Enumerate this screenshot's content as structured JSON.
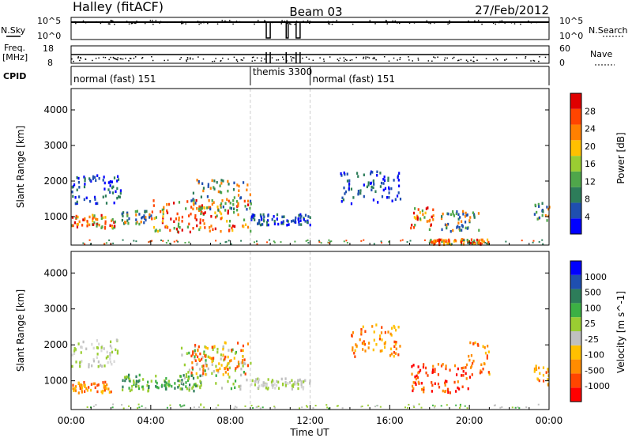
{
  "header": {
    "station": "Halley (fitACF)",
    "beam": "Beam 03",
    "date": "27/Feb/2012"
  },
  "chart_data": [
    {
      "type": "line",
      "name_panel": "noise",
      "left_label": "N.Sky",
      "right_label": "N.Search",
      "left_ticks": [
        "10^5",
        "10^0"
      ],
      "right_ticks": [
        "10^5",
        "10^0"
      ]
    },
    {
      "type": "line",
      "name_panel": "frequency",
      "left_label_line1": "Freq.",
      "left_label_line2": "[MHz]",
      "right_label": "Nave",
      "left_ticks": [
        "18",
        "8"
      ],
      "right_ticks": [
        "60",
        "0"
      ]
    },
    {
      "type": "table",
      "name_panel": "cpid",
      "label": "CPID",
      "segments": [
        {
          "start_hour": 0.0,
          "end_hour": 9.0,
          "text": "normal (fast) 151"
        },
        {
          "start_hour": 9.0,
          "end_hour": 12.0,
          "text": "themis 3300"
        },
        {
          "start_hour": 12.0,
          "end_hour": 24.0,
          "text": "normal (fast) 151"
        }
      ]
    },
    {
      "type": "heatmap",
      "name_panel": "power",
      "ylabel": "Slant Range [km]",
      "xlim": [
        0,
        24
      ],
      "ylim": [
        200,
        4600
      ],
      "yticks": [
        1000,
        2000,
        3000,
        4000
      ],
      "colorbar": {
        "label": "Power [dB]",
        "ticks": [
          "28",
          "24",
          "20",
          "16",
          "12",
          "8",
          "4"
        ],
        "colors": [
          "#0000ff",
          "#1f4fb0",
          "#2d7d5a",
          "#4fa64a",
          "#9acd32",
          "#ffc000",
          "#ff8000",
          "#ff4500",
          "#e00000"
        ]
      },
      "regions": [
        {
          "t0": 0.0,
          "t1": 2.2,
          "r0": 700,
          "r1": 1100,
          "level": "high"
        },
        {
          "t0": 0.0,
          "t1": 2.5,
          "r0": 1400,
          "r1": 2200,
          "level": "low"
        },
        {
          "t0": 2.5,
          "t1": 4.0,
          "r0": 800,
          "r1": 1200,
          "level": "mid"
        },
        {
          "t0": 4.0,
          "t1": 9.0,
          "r0": 600,
          "r1": 1500,
          "level": "high"
        },
        {
          "t0": 6.0,
          "t1": 9.0,
          "r0": 1200,
          "r1": 2100,
          "level": "mid"
        },
        {
          "t0": 9.0,
          "t1": 12.0,
          "r0": 800,
          "r1": 1100,
          "level": "low"
        },
        {
          "t0": 13.5,
          "t1": 16.5,
          "r0": 1400,
          "r1": 2300,
          "level": "low"
        },
        {
          "t0": 17.0,
          "t1": 18.2,
          "r0": 600,
          "r1": 1300,
          "level": "high"
        },
        {
          "t0": 18.0,
          "t1": 21.0,
          "r0": 250,
          "r1": 400,
          "level": "high"
        },
        {
          "t0": 18.5,
          "t1": 20.5,
          "r0": 600,
          "r1": 1200,
          "level": "mid"
        },
        {
          "t0": 23.2,
          "t1": 24.0,
          "r0": 900,
          "r1": 1500,
          "level": "mid"
        }
      ]
    },
    {
      "type": "heatmap",
      "name_panel": "velocity",
      "ylabel": "Slant Range [km]",
      "xlabel": "Time UT",
      "xlim": [
        0,
        24
      ],
      "ylim": [
        200,
        4600
      ],
      "xtick_labels": [
        "00:00",
        "04:00",
        "08:00",
        "12:00",
        "16:00",
        "20:00",
        "00:00"
      ],
      "yticks": [
        1000,
        2000,
        3000,
        4000
      ],
      "colorbar": {
        "label": "Velocity [m s^-1]",
        "ticks": [
          "1000",
          "500",
          "100",
          "25",
          "-25",
          "-100",
          "-500",
          "-1000"
        ],
        "colors": [
          "#ff0000",
          "#ff4500",
          "#ff8c00",
          "#ffc000",
          "#c0c0c0",
          "#9acd32",
          "#3cb044",
          "#2d7d5a",
          "#1f4fb0",
          "#0000ff"
        ]
      },
      "regions": [
        {
          "t0": 0.0,
          "t1": 2.0,
          "r0": 700,
          "r1": 1000,
          "level": "neg-mid"
        },
        {
          "t0": 0.0,
          "t1": 2.3,
          "r0": 1400,
          "r1": 2200,
          "level": "zero"
        },
        {
          "t0": 2.5,
          "t1": 6.5,
          "r0": 750,
          "r1": 1200,
          "level": "pos-mid"
        },
        {
          "t0": 5.5,
          "t1": 9.0,
          "r0": 800,
          "r1": 2000,
          "level": "pos-low"
        },
        {
          "t0": 6.0,
          "t1": 9.0,
          "r0": 1200,
          "r1": 2100,
          "level": "neg-mid"
        },
        {
          "t0": 9.0,
          "t1": 12.0,
          "r0": 800,
          "r1": 1100,
          "level": "zero"
        },
        {
          "t0": 14.0,
          "t1": 16.5,
          "r0": 1700,
          "r1": 2600,
          "level": "neg-mid"
        },
        {
          "t0": 17.0,
          "t1": 20.0,
          "r0": 700,
          "r1": 1500,
          "level": "neg-high"
        },
        {
          "t0": 19.8,
          "t1": 21.0,
          "r0": 1200,
          "r1": 2100,
          "level": "neg-mid"
        },
        {
          "t0": 23.2,
          "t1": 24.0,
          "r0": 900,
          "r1": 1500,
          "level": "neg-mid"
        }
      ]
    }
  ]
}
